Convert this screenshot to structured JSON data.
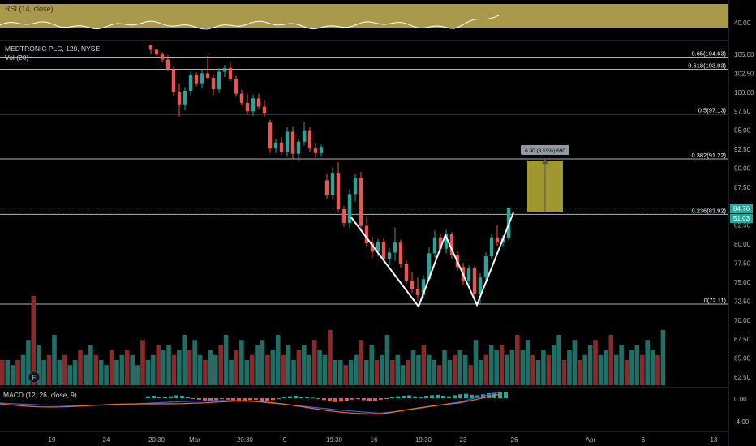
{
  "rsi": {
    "label": "RSI (14, close)",
    "level": "40.00",
    "band_color": "#c9b458"
  },
  "symbol": {
    "title": "MEDTRONIC PLC, 120, NYSE",
    "volume_label": "Vol (20)"
  },
  "price_axis": {
    "ticks": [
      "105.00",
      "102.50",
      "100.00",
      "97.50",
      "95.00",
      "92.50",
      "90.00",
      "87.50",
      "85.00",
      "82.50",
      "80.00",
      "77.50",
      "75.00",
      "72.50",
      "70.00",
      "67.50",
      "65.00",
      "62.50"
    ],
    "current_price": "84.76",
    "countdown": "51:03",
    "current_color": "#26a69a"
  },
  "fib_levels": [
    {
      "label": "0.65(104.63)",
      "value": 104.63
    },
    {
      "label": "0.618(103.03)",
      "value": 103.03
    },
    {
      "label": "0.5(97.13)",
      "value": 97.13
    },
    {
      "label": "0.382(91.22)",
      "value": 91.22
    },
    {
      "label": "0.236(83.92)",
      "value": 83.92
    },
    {
      "label": "0(72.11)",
      "value": 72.11
    }
  ],
  "measure_tool": {
    "label": "6.90 (8.19%) 690",
    "color": "#bdb23a"
  },
  "macd": {
    "label": "MACD (12, 26, close, 9)",
    "ticks": [
      "0.00",
      "-4.00"
    ]
  },
  "time_axis": {
    "labels": [
      "19",
      "24",
      "20:30",
      "Mar",
      "20:30",
      "9",
      "19:30",
      "16",
      "19:30",
      "23",
      "26",
      "Apr",
      "6",
      "13"
    ]
  },
  "colors": {
    "up": "#26a69a",
    "down": "#ef5350",
    "vol_up": "#1f6f66",
    "vol_down": "#8a2a2d",
    "pattern": "#ffffff"
  },
  "chart_data": {
    "type": "candlestick",
    "series": [
      {
        "name": "MDT",
        "values": [
          [
            106.2,
            105.9,
            105.0,
            105.6
          ],
          [
            105.6,
            105.7,
            104.8,
            105.0
          ],
          [
            105.0,
            105.3,
            103.9,
            104.3
          ],
          [
            104.3,
            104.9,
            102.8,
            103.0
          ],
          [
            103.0,
            103.4,
            99.5,
            100.0
          ],
          [
            100.0,
            101.2,
            96.8,
            98.4
          ],
          [
            98.4,
            100.7,
            97.6,
            100.2
          ],
          [
            100.2,
            102.8,
            99.6,
            102.3
          ],
          [
            102.3,
            102.6,
            100.8,
            101.2
          ],
          [
            101.2,
            103.0,
            100.5,
            102.5
          ],
          [
            102.5,
            104.8,
            101.8,
            101.9
          ],
          [
            101.9,
            102.4,
            99.6,
            100.4
          ],
          [
            100.4,
            103.2,
            99.9,
            102.7
          ],
          [
            102.7,
            103.6,
            102.0,
            103.2
          ],
          [
            103.2,
            103.9,
            101.5,
            101.8
          ],
          [
            101.8,
            102.2,
            99.4,
            99.8
          ],
          [
            99.8,
            100.3,
            98.2,
            98.6
          ],
          [
            98.6,
            99.8,
            97.0,
            97.5
          ],
          [
            97.5,
            99.7,
            96.9,
            99.2
          ],
          [
            99.2,
            99.8,
            97.8,
            98.1
          ],
          [
            98.1,
            99.0,
            96.8,
            97.3
          ],
          [
            96.0,
            96.4,
            92.0,
            92.6
          ],
          [
            92.6,
            93.8,
            92.0,
            93.4
          ],
          [
            93.4,
            94.1,
            91.8,
            92.1
          ],
          [
            92.1,
            95.4,
            91.6,
            94.8
          ],
          [
            94.8,
            95.5,
            91.3,
            91.9
          ],
          [
            91.9,
            93.9,
            91.0,
            93.5
          ],
          [
            93.5,
            96.1,
            93.0,
            95.0
          ],
          [
            95.0,
            95.4,
            92.1,
            92.6
          ],
          [
            92.6,
            93.4,
            91.4,
            92.0
          ],
          [
            92.0,
            93.1,
            91.6,
            92.8
          ],
          [
            88.4,
            89.2,
            86.0,
            86.5
          ],
          [
            86.5,
            90.1,
            85.8,
            89.4
          ],
          [
            89.4,
            90.8,
            84.2,
            84.6
          ],
          [
            84.6,
            85.0,
            82.3,
            82.8
          ],
          [
            82.8,
            87.2,
            82.1,
            86.6
          ],
          [
            86.6,
            89.3,
            85.6,
            88.7
          ],
          [
            88.7,
            89.5,
            81.9,
            82.4
          ],
          [
            82.4,
            83.7,
            79.6,
            80.1
          ],
          [
            80.1,
            81.0,
            78.2,
            79.0
          ],
          [
            79.0,
            80.7,
            78.4,
            80.3
          ],
          [
            80.3,
            80.8,
            77.6,
            78.1
          ],
          [
            78.1,
            79.5,
            77.2,
            78.9
          ],
          [
            78.9,
            82.2,
            77.8,
            80.2
          ],
          [
            80.2,
            80.6,
            76.9,
            77.4
          ],
          [
            77.4,
            77.9,
            74.8,
            75.2
          ],
          [
            75.2,
            76.3,
            73.6,
            74.1
          ],
          [
            74.1,
            75.6,
            72.6,
            73.3
          ],
          [
            73.3,
            75.9,
            72.9,
            75.4
          ],
          [
            75.4,
            79.6,
            75.1,
            78.8
          ],
          [
            78.8,
            81.8,
            78.2,
            80.9
          ],
          [
            80.9,
            81.3,
            78.9,
            79.4
          ],
          [
            79.4,
            81.9,
            78.8,
            81.3
          ],
          [
            81.3,
            81.6,
            78.1,
            78.6
          ],
          [
            78.6,
            79.1,
            76.5,
            77.0
          ],
          [
            77.0,
            77.6,
            74.6,
            75.1
          ],
          [
            75.1,
            77.2,
            74.6,
            76.8
          ],
          [
            76.8,
            77.1,
            73.1,
            73.5
          ],
          [
            73.5,
            76.2,
            72.2,
            75.6
          ],
          [
            75.6,
            78.9,
            75.2,
            78.4
          ],
          [
            78.4,
            81.4,
            78.1,
            80.9
          ],
          [
            80.9,
            82.5,
            79.8,
            80.2
          ],
          [
            80.2,
            81.2,
            79.6,
            80.8
          ],
          [
            80.8,
            84.9,
            80.5,
            84.76
          ]
        ]
      }
    ],
    "volume": [
      5,
      5,
      4,
      5,
      6,
      9,
      5,
      8,
      5,
      6,
      10,
      5,
      6,
      4,
      5,
      7,
      6,
      8,
      6,
      5,
      4,
      7,
      5,
      6,
      7,
      6,
      4,
      9,
      5,
      6,
      8,
      7,
      8,
      6,
      7,
      10,
      7,
      9,
      6,
      5,
      7,
      6,
      8,
      10,
      5,
      7,
      9,
      5,
      6,
      8,
      9,
      6,
      7,
      10,
      6,
      8,
      5,
      7,
      8,
      6,
      9,
      7,
      6,
      11
    ],
    "macd_histogram": [
      0.4,
      0.5,
      0.3,
      0.2,
      0.4,
      0.6,
      0.5,
      0.3,
      -0.1,
      -0.3,
      -0.5,
      -0.6,
      -0.4,
      -0.2,
      -0.3,
      -0.5,
      -0.7,
      -0.6,
      -0.4,
      -0.3,
      -0.5,
      -0.6,
      -0.4,
      -0.2,
      0.2,
      0.4,
      0.5,
      0.3,
      0.2,
      0.1,
      -0.2,
      -0.4,
      -0.6,
      -0.8,
      -0.7,
      -0.5,
      -0.3,
      -0.2,
      -0.4,
      -0.6,
      -0.5,
      -0.3,
      -0.1,
      0.2,
      0.4,
      0.5,
      0.6,
      0.4,
      0.3,
      0.5,
      0.6,
      0.7,
      0.5,
      0.4,
      0.6,
      0.8,
      0.9,
      0.7,
      0.6,
      0.8,
      1.0,
      1.1,
      1.2,
      1.3
    ],
    "ylim": [
      61.5,
      106.5
    ]
  }
}
